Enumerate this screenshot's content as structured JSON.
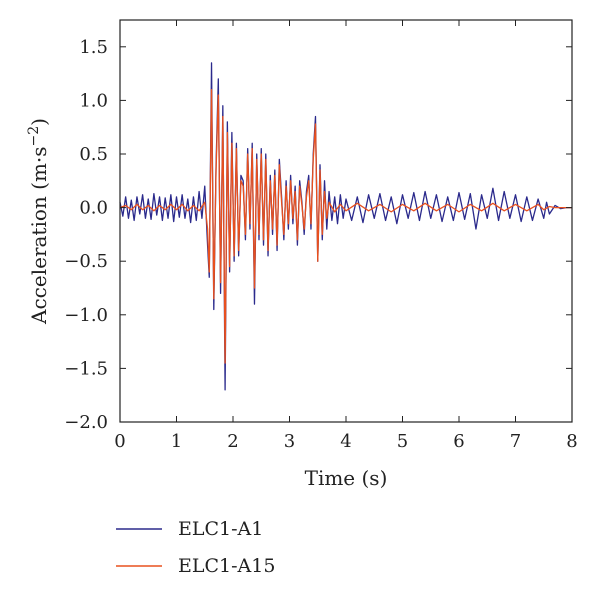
{
  "chart_data": {
    "type": "line",
    "title": "",
    "xlabel": "Time (s)",
    "ylabel_main": "Acceleration (m·s",
    "ylabel_sup": "−2",
    "ylabel_close": ")",
    "xlim": [
      0,
      8
    ],
    "ylim": [
      -2.0,
      1.75
    ],
    "xticks": [
      0,
      1,
      2,
      3,
      4,
      5,
      6,
      7,
      8
    ],
    "xtick_labels": [
      "0",
      "1",
      "2",
      "3",
      "4",
      "5",
      "6",
      "7",
      "8"
    ],
    "yticks": [
      -2.0,
      -1.5,
      -1.0,
      -0.5,
      0.0,
      0.5,
      1.0,
      1.5
    ],
    "ytick_labels": [
      "−2.0",
      "−1.5",
      "−1.0",
      "−0.5",
      "0.0",
      "0.5",
      "1.0",
      "1.5"
    ],
    "grid": false,
    "legend_position": "bottom-left, below plot",
    "series": [
      {
        "name": "ELC1-A1",
        "color": "#2b2a8c",
        "x": [
          0.0,
          0.05,
          0.1,
          0.15,
          0.2,
          0.25,
          0.3,
          0.35,
          0.4,
          0.45,
          0.5,
          0.55,
          0.6,
          0.65,
          0.7,
          0.75,
          0.8,
          0.85,
          0.9,
          0.95,
          1.0,
          1.05,
          1.1,
          1.15,
          1.2,
          1.25,
          1.3,
          1.35,
          1.4,
          1.45,
          1.5,
          1.55,
          1.58,
          1.62,
          1.66,
          1.7,
          1.74,
          1.78,
          1.82,
          1.86,
          1.9,
          1.94,
          1.98,
          2.02,
          2.06,
          2.1,
          2.14,
          2.18,
          2.22,
          2.26,
          2.3,
          2.34,
          2.38,
          2.42,
          2.46,
          2.5,
          2.54,
          2.58,
          2.62,
          2.66,
          2.7,
          2.74,
          2.78,
          2.82,
          2.86,
          2.9,
          2.94,
          2.98,
          3.02,
          3.06,
          3.1,
          3.14,
          3.18,
          3.22,
          3.26,
          3.3,
          3.34,
          3.38,
          3.42,
          3.46,
          3.5,
          3.54,
          3.58,
          3.62,
          3.66,
          3.7,
          3.75,
          3.8,
          3.85,
          3.9,
          3.95,
          4.0,
          4.1,
          4.2,
          4.3,
          4.4,
          4.5,
          4.6,
          4.7,
          4.8,
          4.9,
          5.0,
          5.1,
          5.2,
          5.3,
          5.4,
          5.5,
          5.6,
          5.7,
          5.8,
          5.9,
          6.0,
          6.1,
          6.2,
          6.3,
          6.4,
          6.5,
          6.6,
          6.7,
          6.8,
          6.9,
          7.0,
          7.1,
          7.2,
          7.3,
          7.4,
          7.5,
          7.55,
          7.6,
          7.7,
          7.8,
          7.9,
          8.0
        ],
        "y": [
          0.05,
          -0.08,
          0.1,
          -0.1,
          0.07,
          -0.12,
          0.1,
          -0.06,
          0.12,
          -0.1,
          0.08,
          -0.11,
          0.13,
          -0.07,
          0.1,
          -0.12,
          0.09,
          -0.1,
          0.12,
          -0.13,
          0.1,
          -0.09,
          0.12,
          -0.1,
          0.08,
          -0.14,
          0.1,
          -0.12,
          0.15,
          -0.1,
          0.2,
          -0.35,
          -0.65,
          1.35,
          -0.95,
          0.4,
          1.2,
          -0.8,
          0.95,
          -1.7,
          0.8,
          -0.6,
          0.7,
          -0.5,
          0.6,
          -0.45,
          0.3,
          0.25,
          -0.3,
          0.55,
          -0.2,
          0.6,
          -0.9,
          0.5,
          -0.3,
          0.55,
          -0.35,
          0.5,
          -0.45,
          0.3,
          -0.25,
          0.35,
          -0.4,
          0.45,
          0.1,
          -0.3,
          0.25,
          -0.2,
          0.3,
          -0.15,
          0.2,
          -0.35,
          0.25,
          0.05,
          -0.25,
          0.15,
          0.3,
          -0.2,
          0.5,
          0.85,
          -0.5,
          0.4,
          -0.3,
          0.25,
          -0.2,
          0.15,
          -0.12,
          0.1,
          -0.15,
          0.12,
          -0.1,
          0.08,
          -0.12,
          0.1,
          -0.14,
          0.12,
          -0.1,
          0.13,
          -0.12,
          0.1,
          -0.15,
          0.12,
          -0.1,
          0.14,
          -0.12,
          0.15,
          -0.1,
          0.12,
          -0.13,
          0.1,
          -0.12,
          0.14,
          -0.11,
          0.13,
          -0.2,
          0.12,
          -0.1,
          0.18,
          -0.12,
          0.15,
          -0.1,
          0.12,
          -0.13,
          0.1,
          -0.12,
          0.08,
          -0.1,
          0.05,
          -0.06,
          0.02,
          -0.01,
          0.0,
          0.0
        ]
      },
      {
        "name": "ELC1-A15",
        "color": "#e8501e",
        "x": [
          0.0,
          0.1,
          0.2,
          0.3,
          0.4,
          0.5,
          0.6,
          0.7,
          0.8,
          0.9,
          1.0,
          1.1,
          1.2,
          1.3,
          1.4,
          1.5,
          1.55,
          1.58,
          1.62,
          1.66,
          1.7,
          1.74,
          1.78,
          1.82,
          1.86,
          1.9,
          1.94,
          1.98,
          2.02,
          2.06,
          2.1,
          2.14,
          2.18,
          2.22,
          2.26,
          2.3,
          2.34,
          2.38,
          2.42,
          2.46,
          2.5,
          2.54,
          2.58,
          2.62,
          2.66,
          2.7,
          2.74,
          2.78,
          2.82,
          2.86,
          2.9,
          2.94,
          2.98,
          3.02,
          3.06,
          3.1,
          3.14,
          3.18,
          3.22,
          3.26,
          3.3,
          3.34,
          3.38,
          3.42,
          3.46,
          3.5,
          3.54,
          3.58,
          3.62,
          3.66,
          3.7,
          3.8,
          3.9,
          4.0,
          4.2,
          4.4,
          4.6,
          4.8,
          5.0,
          5.2,
          5.4,
          5.6,
          5.8,
          6.0,
          6.2,
          6.4,
          6.6,
          6.8,
          7.0,
          7.2,
          7.4,
          7.5,
          7.6,
          7.7,
          7.8,
          8.0
        ],
        "y": [
          0.0,
          0.02,
          -0.02,
          0.03,
          -0.02,
          0.02,
          -0.03,
          0.02,
          -0.02,
          0.03,
          -0.02,
          0.03,
          -0.03,
          0.02,
          -0.03,
          0.05,
          -0.2,
          -0.6,
          1.1,
          -0.85,
          0.35,
          1.05,
          -0.7,
          0.85,
          -1.45,
          0.7,
          -0.55,
          0.6,
          -0.45,
          0.55,
          -0.4,
          0.25,
          0.2,
          -0.25,
          0.5,
          -0.15,
          0.55,
          -0.75,
          0.45,
          -0.25,
          0.5,
          -0.3,
          0.45,
          -0.4,
          0.25,
          -0.2,
          0.3,
          -0.35,
          0.4,
          0.05,
          -0.25,
          0.2,
          -0.15,
          0.25,
          -0.1,
          0.15,
          -0.3,
          0.2,
          0.02,
          -0.2,
          0.1,
          0.25,
          -0.15,
          0.45,
          0.78,
          -0.5,
          0.35,
          -0.25,
          0.15,
          -0.1,
          0.05,
          -0.04,
          0.03,
          -0.03,
          0.04,
          -0.03,
          0.03,
          -0.04,
          0.03,
          -0.03,
          0.04,
          -0.03,
          0.03,
          -0.04,
          0.03,
          -0.03,
          0.04,
          -0.03,
          0.03,
          -0.03,
          0.03,
          -0.02,
          0.01,
          0.0,
          0.0,
          0.0
        ]
      }
    ]
  }
}
